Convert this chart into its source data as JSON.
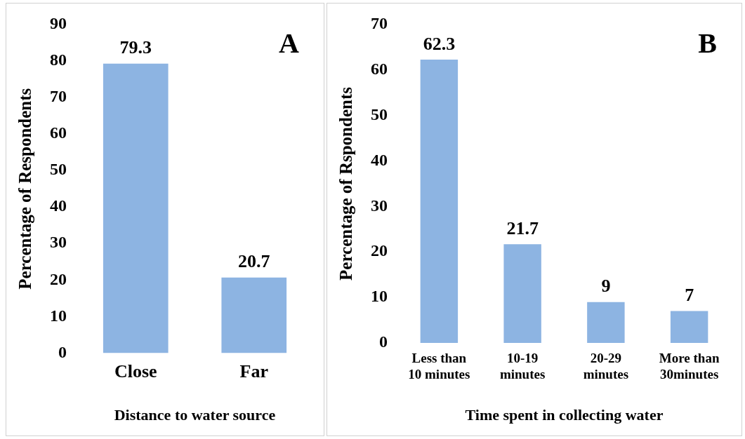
{
  "chart_data": [
    {
      "type": "bar",
      "xlabel": "Distance to water source",
      "ylabel": "Percentage of Respondents",
      "categories": [
        "Close",
        "Far"
      ],
      "values": [
        79.3,
        20.7
      ],
      "color": "#8db4e2",
      "ylim": [
        0,
        90
      ],
      "yticks": [
        0,
        10,
        20,
        30,
        40,
        50,
        60,
        70,
        80,
        90
      ],
      "grid": false,
      "legend": false,
      "data_labels": true,
      "annotations": [
        "A"
      ]
    },
    {
      "type": "bar",
      "xlabel": "Time spent in collecting water",
      "ylabel": "Percentage of Rspondents",
      "categories": [
        "Less than 10 minutes",
        "10-19 minutes",
        "20-29 minutes",
        "More than 30minutes"
      ],
      "values": [
        62.3,
        21.7,
        9,
        7
      ],
      "color": "#8db4e2",
      "ylim": [
        0,
        70
      ],
      "yticks": [
        0,
        10,
        20,
        30,
        40,
        50,
        60,
        70
      ],
      "grid": false,
      "legend": false,
      "data_labels": true,
      "annotations": [
        "B"
      ]
    }
  ]
}
